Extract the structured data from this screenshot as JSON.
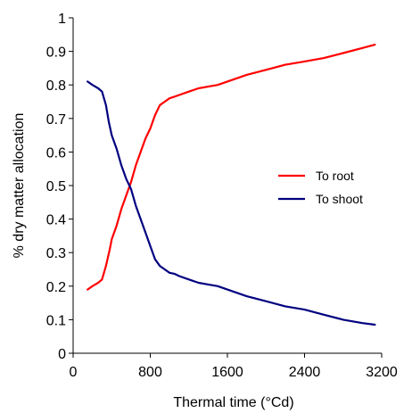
{
  "chart_data": {
    "type": "line",
    "title": "",
    "xlabel": "Thermal time (°Cd)",
    "ylabel": "% dry matter allocation",
    "xlim": [
      0,
      3200
    ],
    "ylim": [
      0,
      1
    ],
    "x_ticks": [
      0,
      800,
      1600,
      2400,
      3200
    ],
    "x_tick_labels": [
      "0",
      "800",
      "1600",
      "2400",
      "3200"
    ],
    "y_ticks": [
      0,
      0.1,
      0.2,
      0.3,
      0.4,
      0.5,
      0.6,
      0.7,
      0.8,
      0.9,
      1
    ],
    "y_tick_labels": [
      "0",
      "0.1",
      "0.2",
      "0.3",
      "0.4",
      "0.5",
      "0.6",
      "0.7",
      "0.8",
      "0.9",
      "1"
    ],
    "grid": false,
    "legend_position": "right-middle",
    "series": [
      {
        "name": "To root",
        "color": "#ff0000",
        "x": [
          150,
          200,
          260,
          300,
          340,
          380,
          400,
          450,
          500,
          550,
          600,
          650,
          700,
          750,
          800,
          850,
          900,
          950,
          1000,
          1050,
          1100,
          1200,
          1300,
          1400,
          1500,
          1600,
          1800,
          2000,
          2200,
          2400,
          2600,
          2800,
          3000,
          3130
        ],
        "values": [
          0.19,
          0.2,
          0.21,
          0.22,
          0.26,
          0.31,
          0.34,
          0.38,
          0.43,
          0.47,
          0.51,
          0.56,
          0.6,
          0.64,
          0.67,
          0.71,
          0.74,
          0.75,
          0.76,
          0.765,
          0.77,
          0.78,
          0.79,
          0.795,
          0.8,
          0.81,
          0.83,
          0.845,
          0.86,
          0.87,
          0.88,
          0.895,
          0.91,
          0.92
        ]
      },
      {
        "name": "To shoot",
        "color": "#000080",
        "x": [
          150,
          200,
          260,
          300,
          340,
          370,
          400,
          450,
          500,
          550,
          600,
          650,
          700,
          750,
          800,
          850,
          900,
          950,
          1000,
          1050,
          1100,
          1200,
          1300,
          1400,
          1500,
          1600,
          1800,
          2000,
          2200,
          2400,
          2600,
          2800,
          3000,
          3130
        ],
        "values": [
          0.81,
          0.8,
          0.79,
          0.78,
          0.74,
          0.69,
          0.65,
          0.61,
          0.56,
          0.52,
          0.49,
          0.44,
          0.4,
          0.36,
          0.32,
          0.28,
          0.26,
          0.25,
          0.24,
          0.237,
          0.23,
          0.22,
          0.21,
          0.205,
          0.2,
          0.19,
          0.17,
          0.155,
          0.14,
          0.13,
          0.115,
          0.1,
          0.09,
          0.085
        ]
      }
    ]
  }
}
